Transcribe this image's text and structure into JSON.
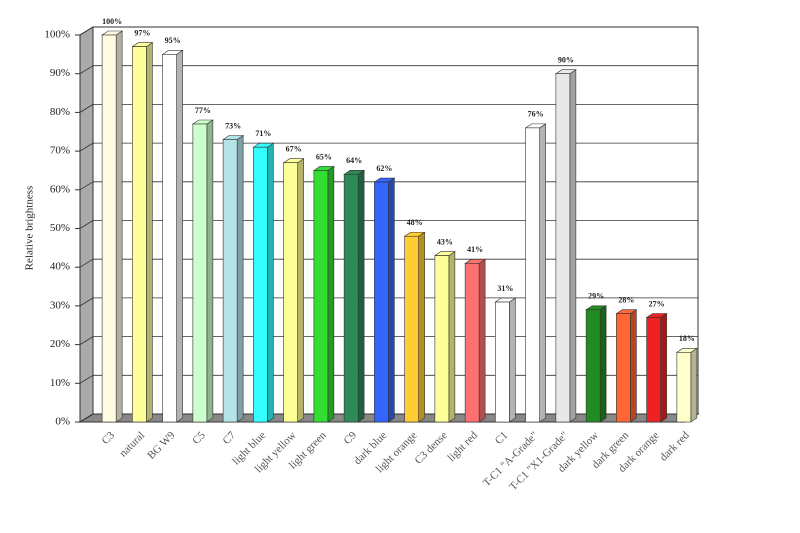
{
  "chart_data": {
    "type": "bar3d",
    "y_label": "Relative brightness",
    "categories": [
      "C3",
      "natural",
      "BG W9",
      "C5",
      "C7",
      "light blue",
      "light yellow",
      "light green",
      "C9",
      "dark blue",
      "light orange",
      "C3 dense",
      "light red",
      "C1",
      "T-C1 \"A-Grade\"",
      "T-C1 \"X1-Grade\"",
      "dark yellow",
      "dark green",
      "dark orange",
      "dark red"
    ],
    "values": [
      100,
      97,
      95,
      77,
      73,
      71,
      67,
      65,
      64,
      62,
      48,
      43,
      41,
      31,
      76,
      90,
      29,
      28,
      27,
      18
    ],
    "value_labels": [
      "100%",
      "97%",
      "95%",
      "77%",
      "73%",
      "71%",
      "67%",
      "65%",
      "64%",
      "62%",
      "48%",
      "43%",
      "41%",
      "31%",
      "76%",
      "90%",
      "29%",
      "28%",
      "27%",
      "18%"
    ],
    "colors": [
      "#fffde0",
      "#ffff99",
      "#ffffff",
      "#ccffcc",
      "#b4e4e8",
      "#33ffff",
      "#ffff99",
      "#33dd33",
      "#2e8b57",
      "#3366ff",
      "#ffcc33",
      "#ffff99",
      "#ff7070",
      "#ffffff",
      "#ffffff",
      "#e8e8e8",
      "#228b22",
      "#ff6633",
      "#ee2222",
      "#ffffcc"
    ],
    "ylim": [
      0,
      100
    ],
    "yticks": [
      {
        "value": 0,
        "label": "0%"
      },
      {
        "value": 10,
        "label": "10%"
      },
      {
        "value": 20,
        "label": "20%"
      },
      {
        "value": 30,
        "label": "30%"
      },
      {
        "value": 40,
        "label": "40%"
      },
      {
        "value": 50,
        "label": "50%"
      },
      {
        "value": 60,
        "label": "60%"
      },
      {
        "value": 70,
        "label": "70%"
      },
      {
        "value": 80,
        "label": "80%"
      },
      {
        "value": 90,
        "label": "90%"
      },
      {
        "value": 100,
        "label": "100%"
      }
    ],
    "grid": true
  }
}
